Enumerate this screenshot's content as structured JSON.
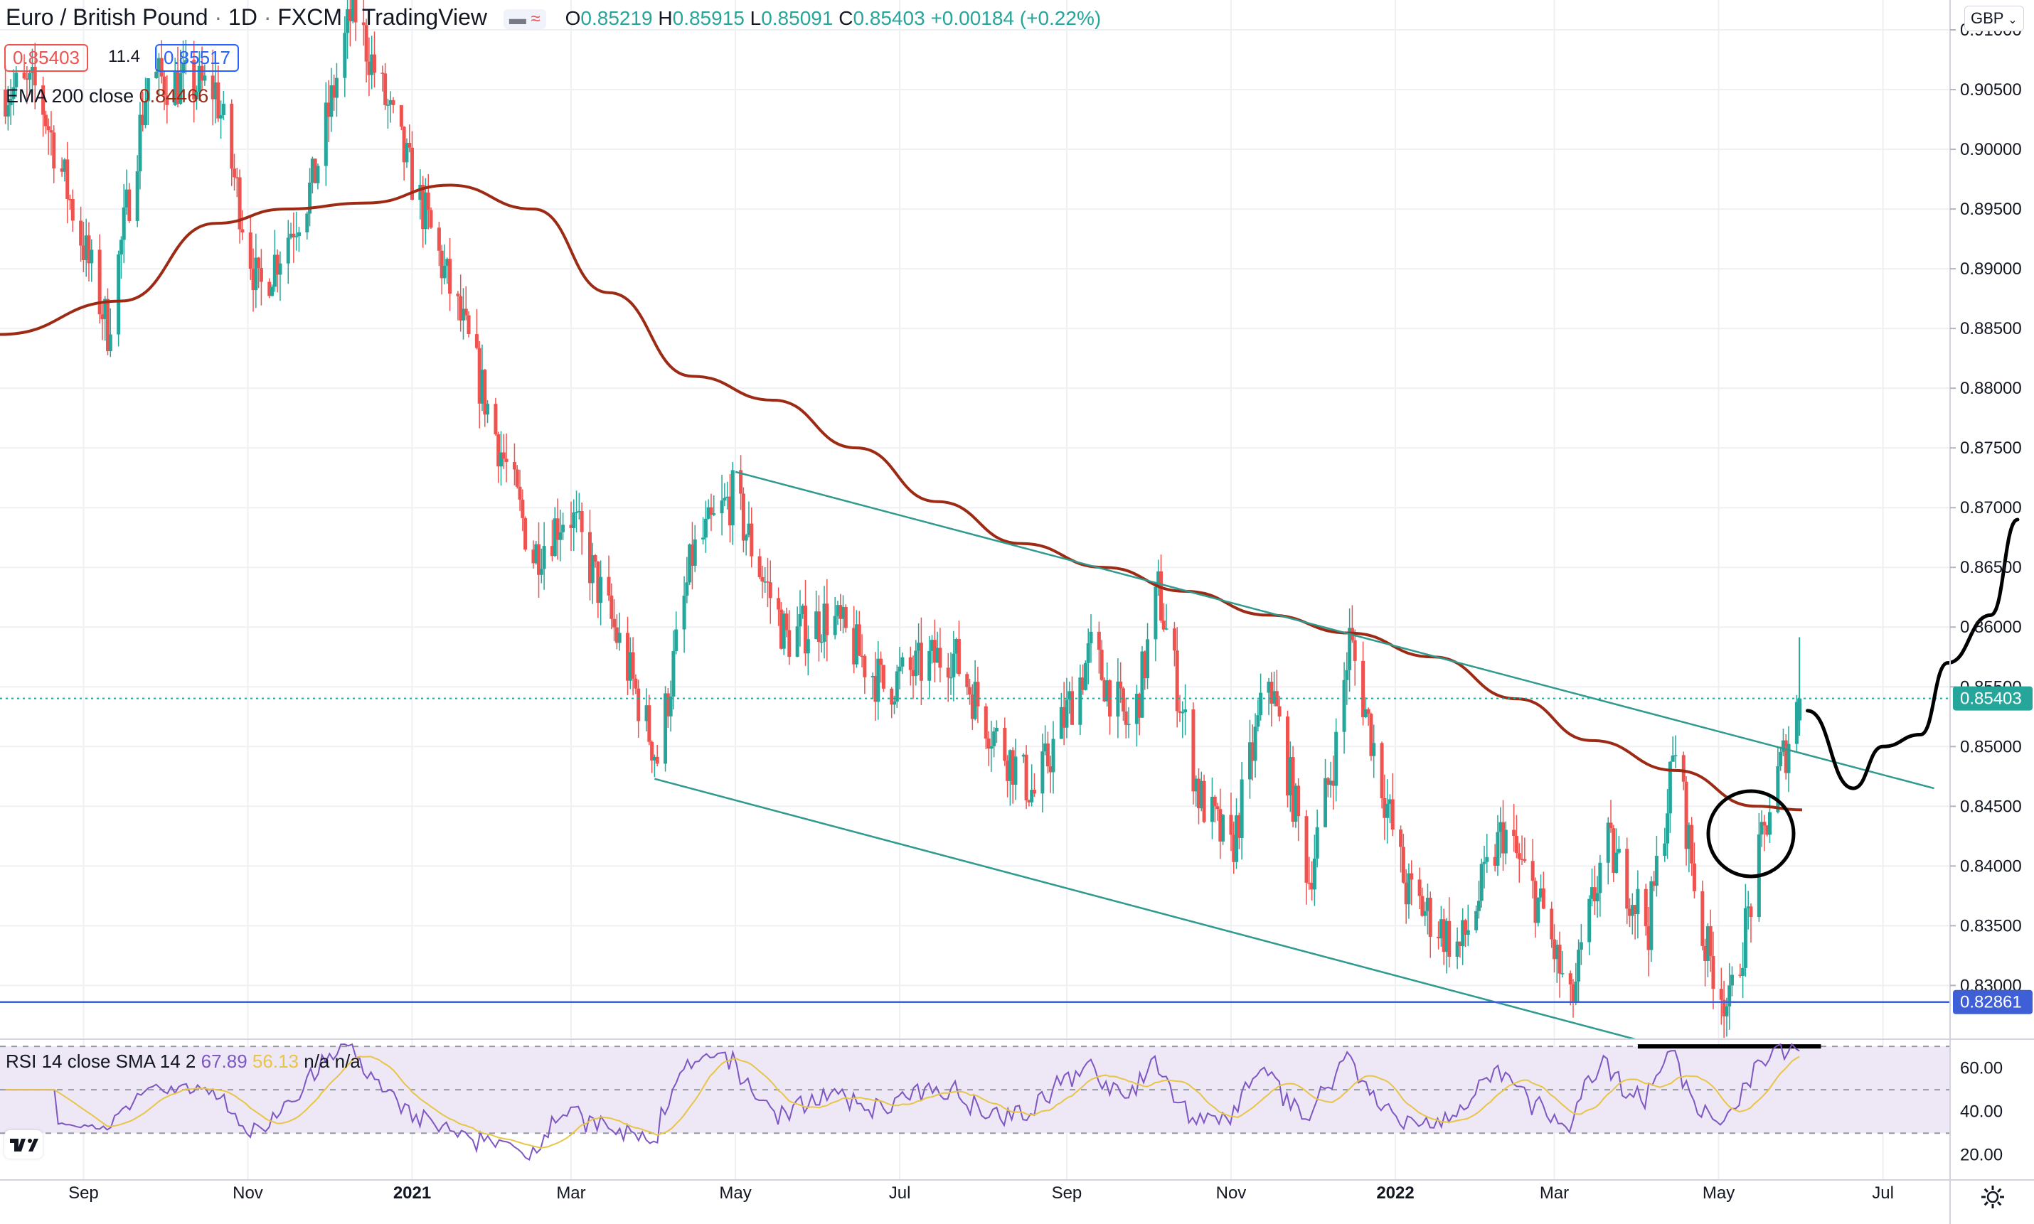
{
  "header": {
    "symbol": "Euro / British Pound",
    "dot1": "·",
    "interval": "1D",
    "dot2": "·",
    "exchange": "FXCM",
    "dot3": "·",
    "platform": "TradingView",
    "ohlc": {
      "o_key": "O",
      "o_val": "0.85219",
      "h_key": "H",
      "h_val": "0.85915",
      "l_key": "L",
      "l_val": "0.85091",
      "c_key": "C",
      "c_val": "0.85403",
      "change": "+0.00184 (+0.22%)"
    },
    "bid": "0.85403",
    "spread": "11.4",
    "ask": "0.85517",
    "ema_label": "EMA 200 close",
    "ema_value": "0.84466",
    "currency_button": "GBP"
  },
  "rsi_header": {
    "label": "RSI 14 close SMA 14 2",
    "rsi_value": "67.89",
    "sma_value": "56.13",
    "na1": "n/a",
    "na2": "n/a"
  },
  "price_axis": {
    "ticks": [
      "0.91000",
      "0.90500",
      "0.90000",
      "0.89500",
      "0.89000",
      "0.88500",
      "0.88000",
      "0.87500",
      "0.87000",
      "0.86500",
      "0.86000",
      "0.85500",
      "0.85000",
      "0.84500",
      "0.84000",
      "0.83500",
      "0.83000"
    ],
    "last_price_tag": "0.85403",
    "level_tag": "0.82861"
  },
  "rsi_axis": {
    "ticks": [
      "60.00",
      "40.00",
      "20.00"
    ]
  },
  "time_axis": {
    "labels": [
      {
        "text": "Sep",
        "bold": false
      },
      {
        "text": "Nov",
        "bold": false
      },
      {
        "text": "2021",
        "bold": true
      },
      {
        "text": "Mar",
        "bold": false
      },
      {
        "text": "May",
        "bold": false
      },
      {
        "text": "Jul",
        "bold": false
      },
      {
        "text": "Sep",
        "bold": false
      },
      {
        "text": "Nov",
        "bold": false
      },
      {
        "text": "2022",
        "bold": true
      },
      {
        "text": "Mar",
        "bold": false
      },
      {
        "text": "May",
        "bold": false
      },
      {
        "text": "Jul",
        "bold": false
      }
    ]
  },
  "colors": {
    "up": "#26a69a",
    "down": "#ef5350",
    "ema": "#9c2a14",
    "channel": "#2f9a8d",
    "support": "#3f5fd6",
    "rsi_line": "#7e57c2",
    "rsi_sma": "#e8c547",
    "rsi_band": "#ede7f6",
    "grid": "#eef0f3",
    "annotation": "#000000"
  },
  "icons": {
    "logo": "tradingview-logo-icon",
    "settings": "gear-icon",
    "currency": "chevron-down-icon"
  },
  "chart_data": {
    "type": "candlestick",
    "symbol": "EUR/GBP",
    "interval": "1D",
    "x_range": [
      "2020-08-01",
      "2022-07-31"
    ],
    "ylim": [
      0.8255,
      0.9125
    ],
    "price_path": [
      {
        "date": "2020-08-15",
        "close": 0.905
      },
      {
        "date": "2020-09-10",
        "close": 0.885
      },
      {
        "date": "2020-09-25",
        "close": 0.906
      },
      {
        "date": "2020-10-20",
        "close": 0.905
      },
      {
        "date": "2020-11-05",
        "close": 0.888
      },
      {
        "date": "2020-11-25",
        "close": 0.897
      },
      {
        "date": "2020-12-10",
        "close": 0.912
      },
      {
        "date": "2020-12-28",
        "close": 0.9
      },
      {
        "date": "2021-01-05",
        "close": 0.895
      },
      {
        "date": "2021-01-20",
        "close": 0.885
      },
      {
        "date": "2021-02-15",
        "close": 0.866
      },
      {
        "date": "2021-02-28",
        "close": 0.87
      },
      {
        "date": "2021-03-20",
        "close": 0.858
      },
      {
        "date": "2021-04-02",
        "close": 0.849
      },
      {
        "date": "2021-04-15",
        "close": 0.866
      },
      {
        "date": "2021-04-30",
        "close": 0.871
      },
      {
        "date": "2021-05-20",
        "close": 0.859
      },
      {
        "date": "2021-06-05",
        "close": 0.861
      },
      {
        "date": "2021-06-25",
        "close": 0.855
      },
      {
        "date": "2021-07-20",
        "close": 0.858
      },
      {
        "date": "2021-08-05",
        "close": 0.851
      },
      {
        "date": "2021-08-20",
        "close": 0.846
      },
      {
        "date": "2021-09-10",
        "close": 0.858
      },
      {
        "date": "2021-09-25",
        "close": 0.851
      },
      {
        "date": "2021-10-05",
        "close": 0.863
      },
      {
        "date": "2021-10-20",
        "close": 0.846
      },
      {
        "date": "2021-11-01",
        "close": 0.841
      },
      {
        "date": "2021-11-15",
        "close": 0.856
      },
      {
        "date": "2021-11-30",
        "close": 0.839
      },
      {
        "date": "2021-12-10",
        "close": 0.85
      },
      {
        "date": "2021-12-15",
        "close": 0.859
      },
      {
        "date": "2022-01-05",
        "close": 0.838
      },
      {
        "date": "2022-01-25",
        "close": 0.833
      },
      {
        "date": "2022-02-10",
        "close": 0.843
      },
      {
        "date": "2022-02-25",
        "close": 0.836
      },
      {
        "date": "2022-03-07",
        "close": 0.828
      },
      {
        "date": "2022-03-20",
        "close": 0.842
      },
      {
        "date": "2022-04-05",
        "close": 0.835
      },
      {
        "date": "2022-04-15",
        "close": 0.85
      },
      {
        "date": "2022-04-25",
        "close": 0.834
      },
      {
        "date": "2022-05-05",
        "close": 0.828
      },
      {
        "date": "2022-05-20",
        "close": 0.845
      },
      {
        "date": "2022-05-31",
        "close": 0.854
      }
    ],
    "ema200": [
      {
        "date": "2020-08-01",
        "value": 0.8845
      },
      {
        "date": "2020-09-15",
        "value": 0.8873
      },
      {
        "date": "2020-10-20",
        "value": 0.8938
      },
      {
        "date": "2020-11-15",
        "value": 0.895
      },
      {
        "date": "2020-12-15",
        "value": 0.8955
      },
      {
        "date": "2021-01-15",
        "value": 0.897
      },
      {
        "date": "2021-02-15",
        "value": 0.895
      },
      {
        "date": "2021-03-15",
        "value": 0.888
      },
      {
        "date": "2021-04-15",
        "value": 0.881
      },
      {
        "date": "2021-05-15",
        "value": 0.879
      },
      {
        "date": "2021-06-15",
        "value": 0.875
      },
      {
        "date": "2021-07-15",
        "value": 0.8705
      },
      {
        "date": "2021-08-15",
        "value": 0.867
      },
      {
        "date": "2021-09-15",
        "value": 0.865
      },
      {
        "date": "2021-10-15",
        "value": 0.863
      },
      {
        "date": "2021-11-15",
        "value": 0.861
      },
      {
        "date": "2021-12-15",
        "value": 0.8595
      },
      {
        "date": "2022-01-15",
        "value": 0.8575
      },
      {
        "date": "2022-02-15",
        "value": 0.854
      },
      {
        "date": "2022-03-15",
        "value": 0.8505
      },
      {
        "date": "2022-04-15",
        "value": 0.848
      },
      {
        "date": "2022-05-15",
        "value": 0.845
      },
      {
        "date": "2022-06-01",
        "value": 0.8447
      }
    ],
    "last_price": 0.85403,
    "support_level": 0.82861,
    "channel_upper": [
      {
        "date": "2021-05-01",
        "value": 0.873
      },
      {
        "date": "2022-07-20",
        "value": 0.8465
      }
    ],
    "channel_lower": [
      {
        "date": "2021-04-01",
        "value": 0.8473
      },
      {
        "date": "2022-03-31",
        "value": 0.8255
      }
    ],
    "projection_path": [
      {
        "date": "2022-06-03",
        "value": 0.853
      },
      {
        "date": "2022-06-20",
        "value": 0.8465
      },
      {
        "date": "2022-07-01",
        "value": 0.85
      },
      {
        "date": "2022-07-15",
        "value": 0.851
      },
      {
        "date": "2022-07-25",
        "value": 0.857
      },
      {
        "date": "2022-08-10",
        "value": 0.861
      },
      {
        "date": "2022-08-20",
        "value": 0.869
      }
    ],
    "rsi": {
      "ylim": [
        15,
        72
      ],
      "band": [
        30,
        70
      ],
      "last": 67.89,
      "sma_last": 56.13
    }
  }
}
